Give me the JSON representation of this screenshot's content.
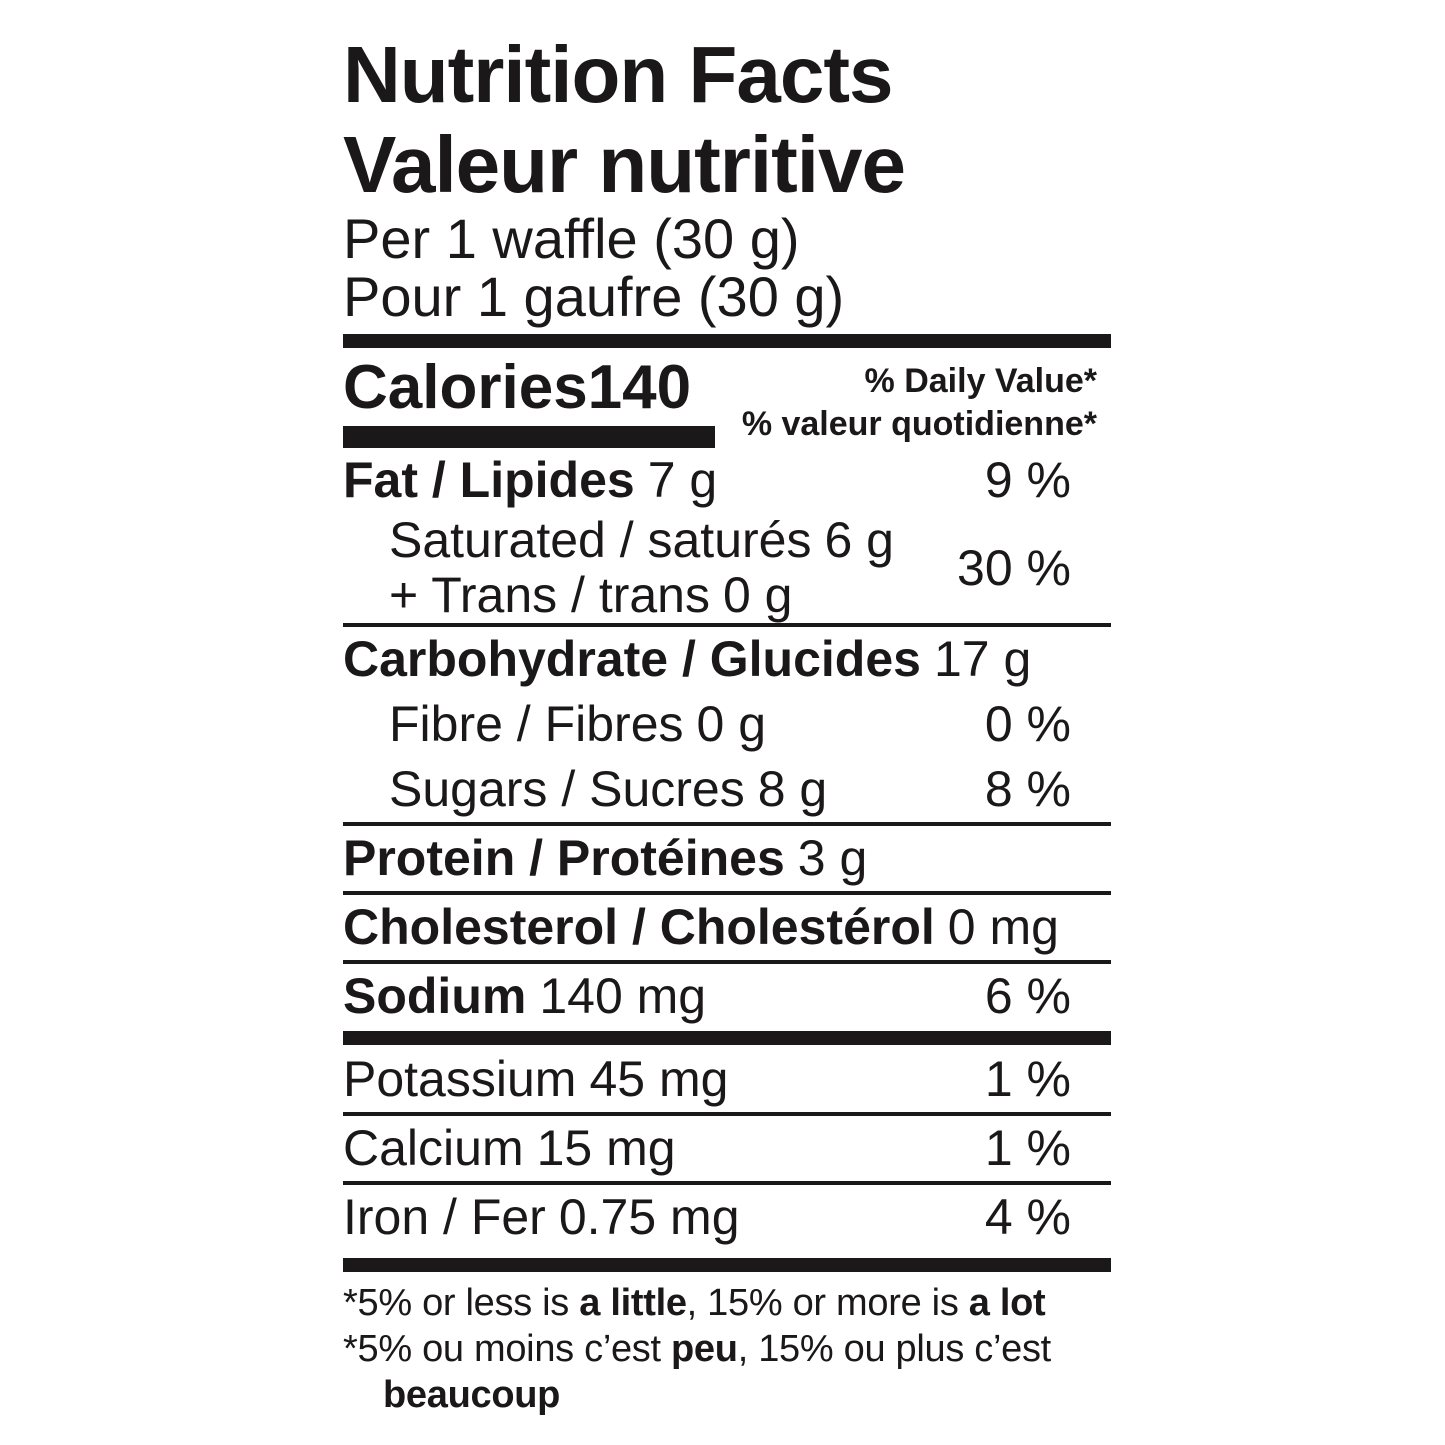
{
  "label": {
    "title_en": "Nutrition Facts",
    "title_fr": "Valeur nutritive",
    "serving_en": "Per 1 waffle (30 g)",
    "serving_fr": "Pour 1 gaufre (30 g)",
    "calories": {
      "label": "Calories",
      "value": "140"
    },
    "dv_header_en": "% Daily Value*",
    "dv_header_fr": "% valeur quotidienne*",
    "rows": [
      {
        "id": "fat",
        "name": "Fat / Lipides",
        "amount": "7 g",
        "percent": "9 %"
      },
      {
        "id": "saturated",
        "name": "Saturated / saturés",
        "amount": "6 g",
        "percent": ""
      },
      {
        "id": "trans",
        "name": "+ Trans / trans",
        "amount": "0 g",
        "percent": "30 %"
      },
      {
        "id": "carbohydrate",
        "name": "Carbohydrate / Glucides",
        "amount": "17 g",
        "percent": ""
      },
      {
        "id": "fibre",
        "name": "Fibre / Fibres",
        "amount": "0 g",
        "percent": "0 %"
      },
      {
        "id": "sugars",
        "name": "Sugars / Sucres",
        "amount": "8 g",
        "percent": "8 %"
      },
      {
        "id": "protein",
        "name": "Protein / Protéines",
        "amount": "3 g",
        "percent": ""
      },
      {
        "id": "cholesterol",
        "name": "Cholesterol / Cholestérol",
        "amount": "0 mg",
        "percent": ""
      },
      {
        "id": "sodium",
        "name": "Sodium",
        "amount": "140 mg",
        "percent": "6 %"
      },
      {
        "id": "potassium",
        "name": "Potassium",
        "amount": "45 mg",
        "percent": "1 %"
      },
      {
        "id": "calcium",
        "name": "Calcium",
        "amount": "15 mg",
        "percent": "1 %"
      },
      {
        "id": "iron",
        "name": "Iron / Fer",
        "amount": "0.75 mg",
        "percent": "4 %"
      }
    ],
    "footnote_en": {
      "pre": "*5% or less is ",
      "bold1": "a little",
      "mid": ", 15% or more is ",
      "bold2": "a lot"
    },
    "footnote_fr": {
      "pre": "*5% ou moins c’est ",
      "bold1": "peu",
      "mid": ", 15% ou plus c’est",
      "bold2": "beaucoup"
    },
    "colors": {
      "ink": "#1b1819",
      "background": "#ffffff"
    }
  }
}
